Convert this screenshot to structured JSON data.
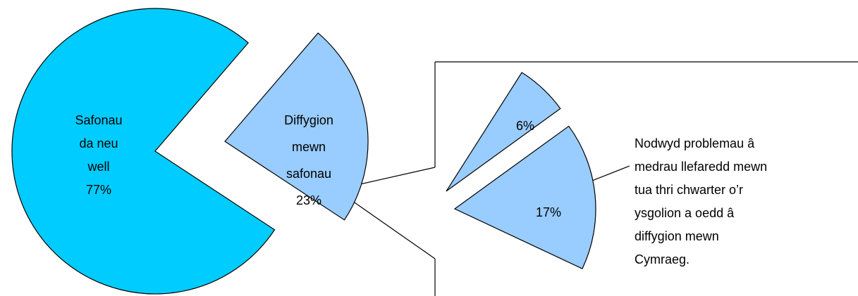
{
  "chart_data": {
    "type": "pie",
    "categories": [
      "Safonau da neu well",
      "Diffygion mewn safonau"
    ],
    "values": [
      77,
      23
    ],
    "value_labels": [
      "77%",
      "23%"
    ],
    "colors": [
      "#00ccff",
      "#99ccff"
    ],
    "breakdown": {
      "values": [
        6,
        17
      ],
      "value_labels": [
        "6%",
        "17%"
      ],
      "color": "#99ccff"
    },
    "annotation": "Nodwyd problemau â medrau llefaredd mewn tua thri chwarter o’r ysgolion a oedd â diffygion mewn Cymraeg."
  }
}
